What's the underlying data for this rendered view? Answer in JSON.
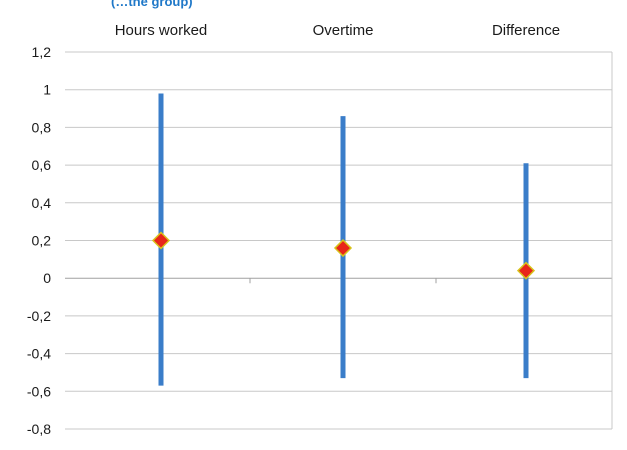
{
  "header": {
    "partial_title": "(…the group)"
  },
  "chart_data": {
    "type": "scatter",
    "categories": [
      "Hours worked",
      "Overtime",
      "Difference"
    ],
    "series": [
      {
        "values": [
          0.2,
          0.16,
          0.04
        ],
        "lower": [
          -0.57,
          -0.53,
          -0.53
        ],
        "upper": [
          0.98,
          0.86,
          0.61
        ]
      }
    ],
    "ylim": [
      -0.8,
      1.2
    ],
    "yticks": [
      1.2,
      1,
      0.8,
      0.6,
      0.4,
      0.2,
      0,
      -0.2,
      -0.4,
      -0.6,
      -0.8
    ],
    "ytick_labels": [
      "1,2",
      "1",
      "0,8",
      "0,6",
      "0,4",
      "0,2",
      "0",
      "-0,2",
      "-0,4",
      "-0,6",
      "-0,8"
    ],
    "grid": true,
    "colors": {
      "interval": "#3a7dc9",
      "marker_fill": "#e8261a",
      "marker_stroke": "#d8c21a",
      "grid": "#c8c8c8",
      "axis": "#a0a0a0"
    }
  }
}
